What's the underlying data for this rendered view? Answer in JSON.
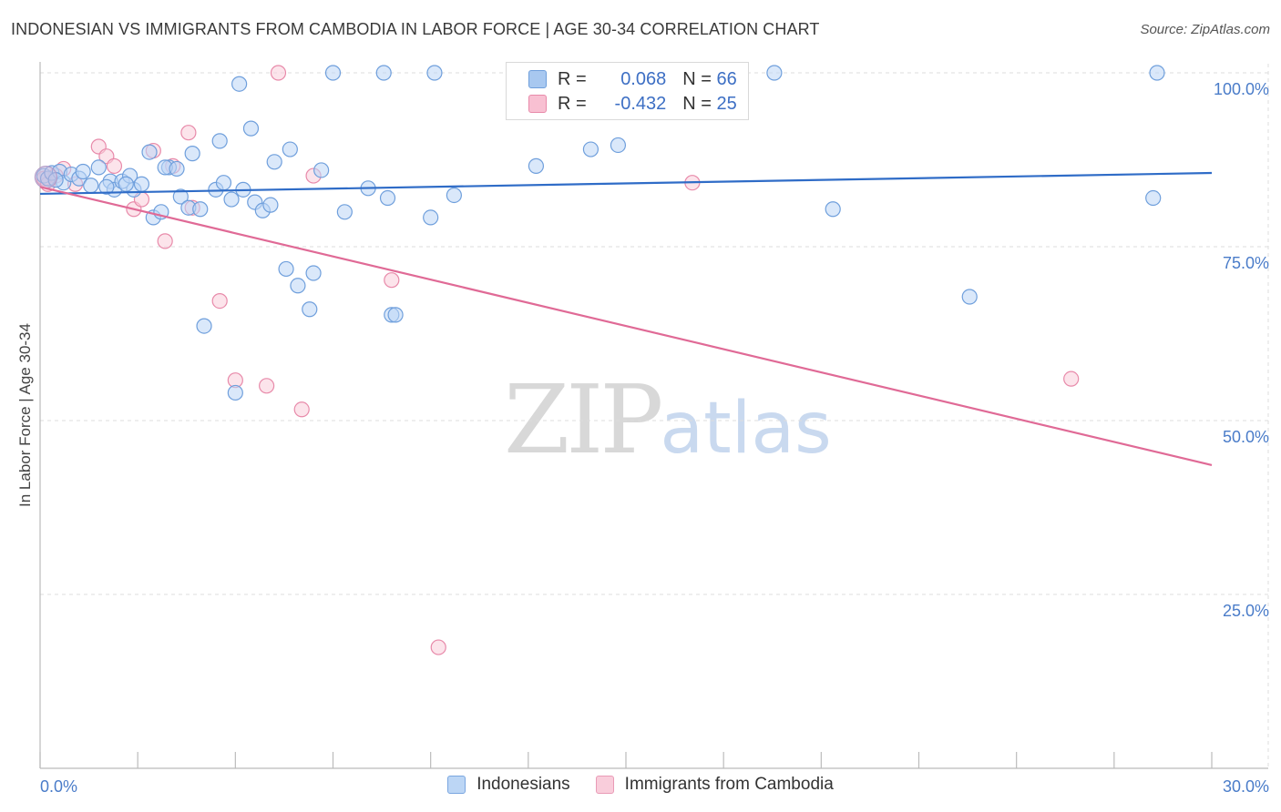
{
  "title": "INDONESIAN VS IMMIGRANTS FROM CAMBODIA IN LABOR FORCE | AGE 30-34 CORRELATION CHART",
  "source": "Source: ZipAtlas.com",
  "watermark": {
    "zip": "ZIP",
    "atlas": "atlas"
  },
  "legend": {
    "r_label": "R =",
    "n_label": "N =",
    "series": [
      {
        "r": "0.068",
        "n": "66",
        "color": "#a8c8f0",
        "border": "#6f9fdc"
      },
      {
        "r": "-0.432",
        "n": "25",
        "color": "#f8c0d2",
        "border": "#e88aaa"
      }
    ]
  },
  "bottom_legend": [
    {
      "label": "Indonesians",
      "color": "#bcd6f5",
      "border": "#7aa6e0"
    },
    {
      "label": "Immigrants from Cambodia",
      "color": "#f9cddb",
      "border": "#e99bb6"
    }
  ],
  "chart_data": {
    "type": "scatter",
    "title": "INDONESIAN VS IMMIGRANTS FROM CAMBODIA IN LABOR FORCE | AGE 30-34 CORRELATION CHART",
    "xlabel": "",
    "ylabel": "In Labor Force | Age 30-34",
    "xlim": [
      0,
      30
    ],
    "ylim": [
      0,
      100
    ],
    "x_ticks": [
      "0.0%",
      "30.0%"
    ],
    "y_ticks": [
      {
        "value": 100,
        "label": "100.0%"
      },
      {
        "value": 75,
        "label": "75.0%"
      },
      {
        "value": 50,
        "label": "50.0%"
      },
      {
        "value": 25,
        "label": "25.0%"
      }
    ],
    "grid": true,
    "legend_position": "top-center",
    "series": [
      {
        "name": "Indonesians",
        "color": "#6f9fdc",
        "fill": "#bcd6f5",
        "trend": {
          "x": [
            0,
            30
          ],
          "y": [
            82.6,
            85.6
          ],
          "color": "#2f6cc7"
        },
        "points": [
          [
            0.1,
            85.2
          ],
          [
            0.2,
            84.8
          ],
          [
            0.3,
            85.6
          ],
          [
            0.5,
            85.8
          ],
          [
            0.6,
            84.2
          ],
          [
            0.8,
            85.4
          ],
          [
            1.0,
            84.8
          ],
          [
            1.1,
            85.8
          ],
          [
            1.3,
            83.8
          ],
          [
            1.5,
            86.4
          ],
          [
            1.8,
            84.4
          ],
          [
            1.9,
            83.2
          ],
          [
            2.1,
            84.4
          ],
          [
            2.3,
            85.2
          ],
          [
            2.4,
            83.2
          ],
          [
            2.6,
            84.0
          ],
          [
            2.8,
            88.6
          ],
          [
            2.9,
            79.2
          ],
          [
            3.1,
            80.0
          ],
          [
            3.3,
            86.4
          ],
          [
            3.6,
            82.2
          ],
          [
            3.8,
            80.6
          ],
          [
            3.9,
            88.4
          ],
          [
            4.1,
            80.4
          ],
          [
            4.2,
            63.6
          ],
          [
            4.5,
            83.2
          ],
          [
            4.6,
            90.2
          ],
          [
            4.7,
            84.2
          ],
          [
            4.9,
            81.8
          ],
          [
            5.0,
            54.0
          ],
          [
            5.1,
            98.4
          ],
          [
            5.2,
            83.2
          ],
          [
            5.4,
            92.0
          ],
          [
            5.5,
            81.4
          ],
          [
            5.7,
            80.2
          ],
          [
            5.9,
            81.0
          ],
          [
            6.0,
            87.2
          ],
          [
            6.3,
            71.8
          ],
          [
            6.4,
            89.0
          ],
          [
            6.6,
            69.4
          ],
          [
            6.9,
            66.0
          ],
          [
            7.0,
            71.2
          ],
          [
            7.2,
            86.0
          ],
          [
            7.5,
            100
          ],
          [
            7.8,
            80.0
          ],
          [
            8.4,
            83.4
          ],
          [
            8.8,
            100
          ],
          [
            8.9,
            82.0
          ],
          [
            9.0,
            65.2
          ],
          [
            9.1,
            65.2
          ],
          [
            10.0,
            79.2
          ],
          [
            10.1,
            100
          ],
          [
            10.6,
            82.4
          ],
          [
            12.7,
            86.6
          ],
          [
            14.1,
            89.0
          ],
          [
            14.8,
            89.6
          ],
          [
            18.8,
            100
          ],
          [
            20.3,
            80.4
          ],
          [
            23.8,
            67.8
          ],
          [
            28.6,
            100
          ],
          [
            28.5,
            82.0
          ],
          [
            3.2,
            86.4
          ],
          [
            1.7,
            83.6
          ],
          [
            2.2,
            84.0
          ],
          [
            0.4,
            84.6
          ],
          [
            3.5,
            86.2
          ]
        ]
      },
      {
        "name": "Immigrants from Cambodia",
        "color": "#e88aaa",
        "fill": "#f9cddb",
        "trend": {
          "x": [
            0,
            30
          ],
          "y": [
            83.6,
            43.6
          ],
          "color": "#e06a96"
        },
        "points": [
          [
            0.1,
            84.8
          ],
          [
            0.2,
            84.0
          ],
          [
            0.6,
            86.2
          ],
          [
            0.9,
            84.0
          ],
          [
            1.5,
            89.4
          ],
          [
            1.7,
            88.0
          ],
          [
            1.9,
            86.6
          ],
          [
            2.4,
            80.4
          ],
          [
            2.6,
            81.8
          ],
          [
            2.9,
            88.8
          ],
          [
            3.2,
            75.8
          ],
          [
            3.4,
            86.6
          ],
          [
            3.8,
            91.4
          ],
          [
            3.9,
            80.6
          ],
          [
            4.6,
            67.2
          ],
          [
            5.0,
            55.8
          ],
          [
            5.8,
            55.0
          ],
          [
            6.1,
            100
          ],
          [
            6.7,
            51.6
          ],
          [
            7.0,
            85.2
          ],
          [
            9.0,
            70.2
          ],
          [
            10.2,
            17.4
          ],
          [
            16.7,
            84.2
          ],
          [
            26.4,
            56.0
          ],
          [
            0.4,
            85.2
          ]
        ]
      }
    ]
  }
}
